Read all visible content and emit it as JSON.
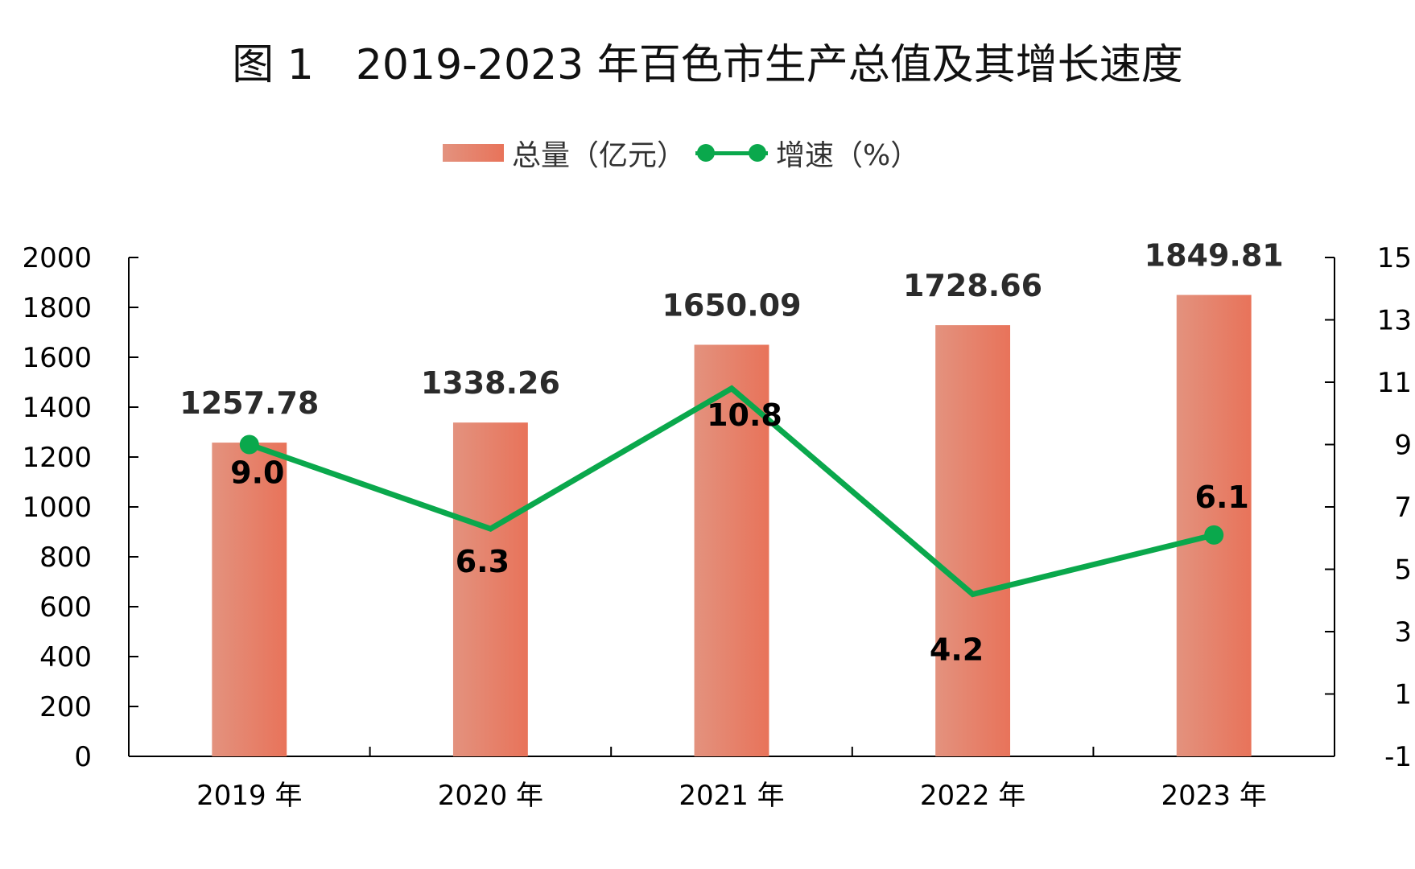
{
  "chart_data": {
    "type": "bar",
    "title": "图 1　2019-2023 年百色市生产总值及其增长速度",
    "categories": [
      "2019 年",
      "2020 年",
      "2021 年",
      "2022 年",
      "2023 年"
    ],
    "series": [
      {
        "name": "总量（亿元）",
        "type": "bar",
        "axis": "left",
        "values": [
          1257.78,
          1338.26,
          1650.09,
          1728.66,
          1849.81
        ],
        "labels": [
          "1257.78",
          "1338.26",
          "1650.09",
          "1728.66",
          "1849.81"
        ],
        "color": "#e8735a"
      },
      {
        "name": "增速（%）",
        "type": "line",
        "axis": "right",
        "values": [
          9.0,
          6.3,
          10.8,
          4.2,
          6.1
        ],
        "labels": [
          "9.0",
          "6.3",
          "10.8",
          "4.2",
          "6.1"
        ],
        "color": "#0aa84c"
      }
    ],
    "y_left": {
      "ylim": [
        0,
        2000
      ],
      "ticks": [
        0,
        200,
        400,
        600,
        800,
        1000,
        1200,
        1400,
        1600,
        1800,
        2000
      ],
      "tick_labels": [
        "0",
        "200",
        "400",
        "600",
        "800",
        "1000",
        "1200",
        "1400",
        "1600",
        "1800",
        "2000"
      ]
    },
    "y_right": {
      "ylim": [
        -1,
        15
      ],
      "ticks": [
        -1,
        1,
        3,
        5,
        7,
        9,
        11,
        13,
        15
      ],
      "tick_labels": [
        "-1",
        "1",
        "3",
        "5",
        "7",
        "9",
        "11",
        "13",
        "15"
      ]
    },
    "legend": "top",
    "grid": false
  }
}
